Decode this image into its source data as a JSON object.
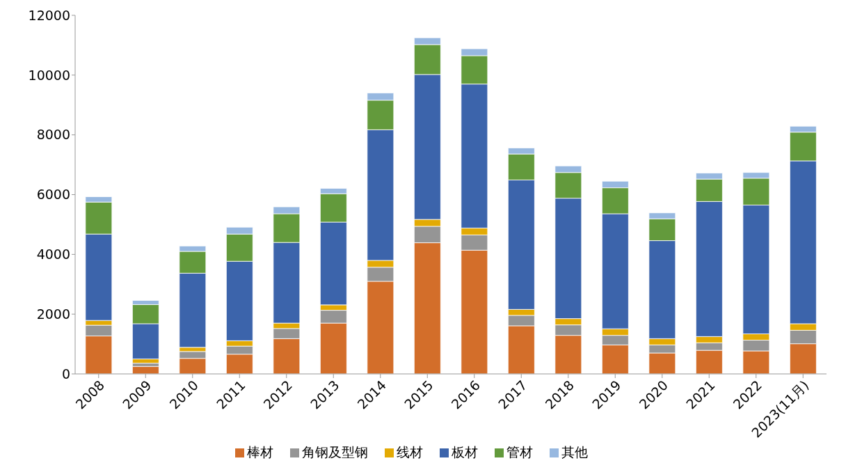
{
  "chart_data": {
    "type": "bar",
    "stacked": true,
    "categories": [
      "2008",
      "2009",
      "2010",
      "2011",
      "2012",
      "2013",
      "2014",
      "2015",
      "2016",
      "2017",
      "2018",
      "2019",
      "2020",
      "2021",
      "2022",
      "2023(11月)"
    ],
    "series": [
      {
        "name": "棒材",
        "color": "#d36e2a",
        "values": [
          1270,
          250,
          520,
          660,
          1180,
          1700,
          3100,
          4390,
          4140,
          1610,
          1290,
          970,
          700,
          790,
          770,
          1010
        ]
      },
      {
        "name": "角钢及型钢",
        "color": "#959595",
        "values": [
          360,
          110,
          230,
          270,
          340,
          430,
          470,
          550,
          510,
          350,
          350,
          320,
          270,
          250,
          360,
          450
        ]
      },
      {
        "name": "线材",
        "color": "#e3aa04",
        "values": [
          160,
          140,
          140,
          180,
          180,
          180,
          230,
          230,
          230,
          200,
          210,
          220,
          210,
          210,
          210,
          220
        ]
      },
      {
        "name": "板材",
        "color": "#3c64ab",
        "values": [
          2890,
          1180,
          2480,
          2660,
          2700,
          2770,
          4370,
          4850,
          4820,
          4330,
          4030,
          3850,
          3280,
          4520,
          4310,
          5450
        ]
      },
      {
        "name": "管材",
        "color": "#639a3c",
        "values": [
          1070,
          640,
          730,
          910,
          960,
          950,
          990,
          1000,
          950,
          870,
          860,
          870,
          730,
          750,
          900,
          960
        ]
      },
      {
        "name": "其他",
        "color": "#97b8e0",
        "values": [
          180,
          140,
          180,
          230,
          230,
          180,
          240,
          230,
          230,
          200,
          220,
          220,
          200,
          200,
          190,
          200
        ]
      }
    ],
    "ylim": [
      0,
      12000
    ],
    "yticks": [
      0,
      2000,
      4000,
      6000,
      8000,
      10000,
      12000
    ],
    "grid": false,
    "legend": "bottom"
  }
}
